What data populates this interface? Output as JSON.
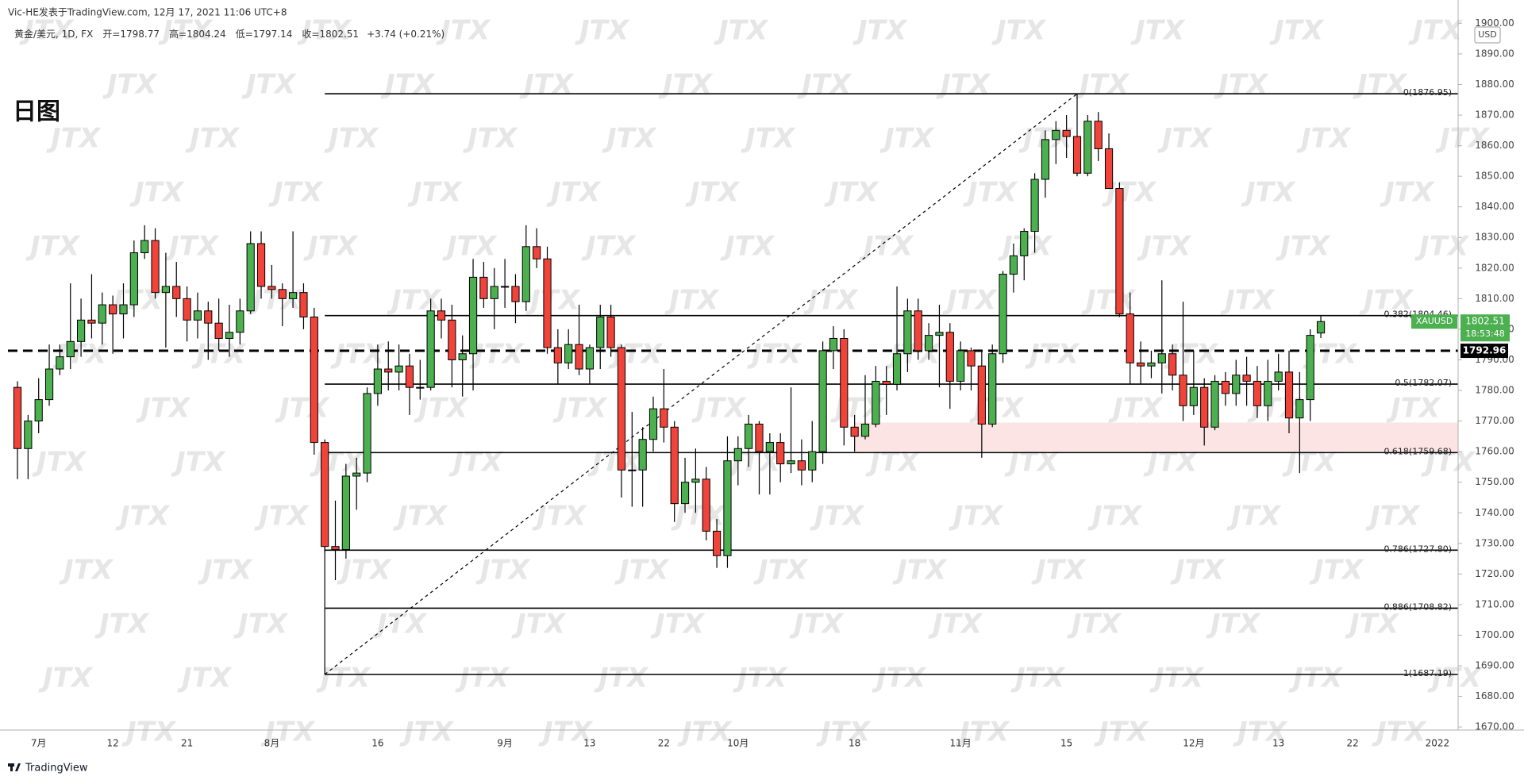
{
  "header": {
    "byline": "Vic-HE发表于TradingView.com, 12月 17, 2021 11:06 UTC+8",
    "symbol": "黄金/美元, 1D, FX",
    "ohlc": [
      {
        "label": "开=",
        "value": 1798.77
      },
      {
        "label": "高=",
        "value": 1804.24
      },
      {
        "label": "低=",
        "value": 1797.14
      },
      {
        "label": "收=",
        "value": 1802.51
      }
    ],
    "change": "+3.74 (+0.21%)"
  },
  "footer": {
    "brand": "TradingView"
  },
  "chart_data": {
    "type": "candlestick",
    "title": "日图",
    "watermark": "JTX",
    "currency": "USD",
    "categories": [
      null,
      null,
      "7月",
      null,
      null,
      null,
      null,
      null,
      null,
      "12",
      null,
      null,
      null,
      null,
      null,
      null,
      "21",
      null,
      null,
      null,
      null,
      null,
      null,
      null,
      "8月",
      null,
      null,
      null,
      null,
      null,
      null,
      null,
      null,
      null,
      "16",
      null,
      null,
      null,
      null,
      null,
      null,
      null,
      null,
      null,
      null,
      null,
      "9月",
      null,
      null,
      null,
      null,
      null,
      null,
      null,
      "13",
      null,
      null,
      null,
      null,
      null,
      null,
      "22",
      null,
      null,
      null,
      null,
      null,
      null,
      "10月",
      null,
      null,
      null,
      null,
      null,
      null,
      null,
      null,
      null,
      null,
      "18",
      null,
      null,
      null,
      null,
      null,
      null,
      null,
      null,
      null,
      "11月",
      null,
      null,
      null,
      null,
      null,
      null,
      null,
      null,
      null,
      "15",
      null,
      null,
      null,
      null,
      null,
      null,
      null,
      null,
      null,
      null,
      null,
      "12月",
      null,
      null,
      null,
      null,
      null,
      null,
      null,
      "13",
      null,
      null,
      null,
      null,
      null,
      null,
      "22",
      null,
      null,
      null,
      null,
      null,
      null,
      null,
      "2022",
      null
    ],
    "open": [
      1781,
      1761,
      1770,
      1777,
      1787,
      1791,
      1796,
      1803,
      1802,
      1808,
      1805,
      1808,
      1825,
      1829,
      1812,
      1814,
      1810,
      1803,
      1806,
      1802,
      1797,
      1799,
      1806,
      1828,
      1814,
      1813,
      1810,
      1812,
      1804,
      1763,
      1729,
      1728,
      1752,
      1753,
      1779,
      1787,
      1786,
      1788,
      1781,
      1781,
      1806,
      1803,
      1790,
      1792,
      1817,
      1810,
      1814,
      1814,
      1809,
      1827,
      1823,
      1794,
      1789,
      1795,
      1787,
      1794,
      1804,
      1794,
      1754,
      1754,
      1764,
      1774,
      1768,
      1743,
      1750,
      1751,
      1734,
      1726,
      1757,
      1761,
      1769,
      1760,
      1763,
      1756,
      1757,
      1754,
      1760,
      1793,
      1797,
      1768,
      1765,
      1769,
      1783,
      1782,
      1792,
      1806,
      1793,
      1798,
      1799,
      1783,
      1793,
      1788,
      1769,
      1792,
      1818,
      1824,
      1832,
      1849,
      1862,
      1865,
      1863,
      1851,
      1868,
      1859,
      1846,
      1805,
      1789,
      1788,
      1789,
      1792,
      1785,
      1775,
      1781,
      1768,
      1783,
      1779,
      1785,
      1783,
      1775,
      1783,
      1786,
      1771,
      1777,
      1798.77,
      null,
      null,
      null,
      null,
      null,
      null,
      null,
      null,
      null,
      null,
      null,
      null
    ],
    "high": [
      1783,
      1772,
      1784,
      1795,
      1795,
      1815,
      1810,
      1818,
      1812,
      1811,
      1815,
      1829,
      1834,
      1833,
      1825,
      1822,
      1814,
      1812,
      1809,
      1810,
      1808,
      1810,
      1832,
      1832,
      1821,
      1815,
      1832,
      1815,
      1807,
      1764,
      1744,
      1756,
      1758,
      1781,
      1795,
      1796,
      1795,
      1792,
      1790,
      1810,
      1810,
      1808,
      1798,
      1823,
      1822,
      1820,
      1823,
      1818,
      1834,
      1833,
      1827,
      1800,
      1800,
      1808,
      1795,
      1808,
      1808,
      1795,
      1773,
      1768,
      1778,
      1787,
      1770,
      1758,
      1761,
      1755,
      1738,
      1765,
      1765,
      1772,
      1770,
      1766,
      1766,
      1781,
      1764,
      1770,
      1796,
      1801,
      1800,
      1772,
      1785,
      1788,
      1788,
      1814,
      1810,
      1810,
      1802,
      1808,
      1802,
      1796,
      1794,
      1793,
      1795,
      1819,
      1828,
      1833,
      1851,
      1865,
      1868,
      1870,
      1877,
      1870,
      1871,
      1864,
      1848,
      1812,
      1796,
      1793,
      1816,
      1795,
      1809,
      1793,
      1784,
      1785,
      1786,
      1790,
      1791,
      1788,
      1790,
      1792,
      1793,
      1786,
      1800,
      1804.24,
      null,
      null,
      null,
      null,
      null,
      null,
      null,
      null,
      null,
      null,
      null,
      null
    ],
    "low": [
      1751,
      1751,
      1766,
      1775,
      1785,
      1787,
      1791,
      1797,
      1795,
      1792,
      1797,
      1804,
      1823,
      1810,
      1794,
      1804,
      1796,
      1797,
      1790,
      1793,
      1791,
      1795,
      1805,
      1810,
      1810,
      1801,
      1807,
      1800,
      1759,
      1727,
      1718,
      1725,
      1741,
      1750,
      1775,
      1780,
      1780,
      1772,
      1777,
      1780,
      1797,
      1781,
      1778,
      1780,
      1807,
      1800,
      1807,
      1802,
      1806,
      1820,
      1792,
      1782,
      1787,
      1785,
      1782,
      1787,
      1791,
      1745,
      1742,
      1742,
      1760,
      1763,
      1737,
      1740,
      1740,
      1731,
      1722,
      1722,
      1749,
      1755,
      1746,
      1746,
      1750,
      1753,
      1749,
      1750,
      1756,
      1787,
      1762,
      1760,
      1764,
      1768,
      1772,
      1780,
      1786,
      1790,
      1790,
      1781,
      1774,
      1780,
      1780,
      1758,
      1768,
      1789,
      1812,
      1816,
      1825,
      1843,
      1854,
      1856,
      1850,
      1850,
      1855,
      1846,
      1804,
      1782,
      1782,
      1784,
      1779,
      1780,
      1770,
      1772,
      1762,
      1767,
      1775,
      1775,
      1775,
      1771,
      1770,
      1780,
      1766,
      1753,
      1770,
      1797.14,
      null,
      null,
      null,
      null,
      null,
      null,
      null,
      null,
      null,
      null,
      null,
      null
    ],
    "close": [
      1761,
      1770,
      1777,
      1787,
      1791,
      1796,
      1803,
      1802,
      1808,
      1805,
      1808,
      1825,
      1829,
      1812,
      1814,
      1810,
      1803,
      1806,
      1802,
      1797,
      1799,
      1806,
      1828,
      1814,
      1813,
      1810,
      1812,
      1804,
      1763,
      1729,
      1728,
      1752,
      1753,
      1779,
      1787,
      1786,
      1788,
      1781,
      1781,
      1806,
      1803,
      1790,
      1792,
      1817,
      1810,
      1814,
      1814,
      1809,
      1827,
      1823,
      1794,
      1789,
      1795,
      1787,
      1794,
      1804,
      1794,
      1754,
      1754,
      1764,
      1774,
      1768,
      1743,
      1750,
      1751,
      1734,
      1726,
      1757,
      1761,
      1769,
      1760,
      1763,
      1756,
      1757,
      1754,
      1760,
      1793,
      1797,
      1768,
      1765,
      1769,
      1783,
      1782,
      1792,
      1806,
      1793,
      1798,
      1799,
      1783,
      1793,
      1788,
      1769,
      1792,
      1818,
      1824,
      1832,
      1849,
      1862,
      1865,
      1863,
      1851,
      1868,
      1859,
      1846,
      1805,
      1789,
      1788,
      1789,
      1792,
      1785,
      1775,
      1781,
      1768,
      1783,
      1779,
      1785,
      1783,
      1775,
      1783,
      1786,
      1771,
      1777,
      1798,
      1802.51,
      null,
      null,
      null,
      null,
      null,
      null,
      null,
      null,
      null,
      null,
      null,
      null
    ],
    "up_color": "#4caf50",
    "down_color": "#f0433a",
    "wick_color": "#000000",
    "ylim": [
      1669,
      1901
    ],
    "yticks": [
      {
        "value": 1670,
        "label": "1670.00"
      },
      {
        "value": 1680,
        "label": "1680.00"
      },
      {
        "value": 1690,
        "label": "1690.00"
      },
      {
        "value": 1700,
        "label": "1700.00"
      },
      {
        "value": 1710,
        "label": "1710.00"
      },
      {
        "value": 1720,
        "label": "1720.00"
      },
      {
        "value": 1730,
        "label": "1730.00"
      },
      {
        "value": 1740,
        "label": "1740.00"
      },
      {
        "value": 1750,
        "label": "1750.00"
      },
      {
        "value": 1760,
        "label": "1760.00"
      },
      {
        "value": 1770,
        "label": "1770.00"
      },
      {
        "value": 1780,
        "label": "1780.00"
      },
      {
        "value": 1790,
        "label": "1790.00"
      },
      {
        "value": 1800,
        "label": "1800.00"
      },
      {
        "value": 1810,
        "label": "1810.00"
      },
      {
        "value": 1820,
        "label": "1820.00"
      },
      {
        "value": 1830,
        "label": "1830.00"
      },
      {
        "value": 1840,
        "label": "1840.00"
      },
      {
        "value": 1850,
        "label": "1850.00"
      },
      {
        "value": 1860,
        "label": "1860.00"
      },
      {
        "value": 1870,
        "label": "1870.00"
      },
      {
        "value": 1880,
        "label": "1880.00"
      },
      {
        "value": 1890,
        "label": "1890.00"
      },
      {
        "value": 1900,
        "label": "1900.00"
      }
    ],
    "fib_levels": [
      {
        "price": 1876.95,
        "label": "0(1876.95)"
      },
      {
        "price": 1804.46,
        "label": "0.382(1804.46)"
      },
      {
        "price": 1782.07,
        "label": "0.5(1782.07)"
      },
      {
        "price": 1759.68,
        "label": "0.618(1759.68)"
      },
      {
        "price": 1727.8,
        "label": "0.786(1727.80)"
      },
      {
        "price": 1708.82,
        "label": "0.886(1708.82)"
      },
      {
        "price": 1687.19,
        "label": "1(1687.19)"
      }
    ],
    "zone": [
      1760,
      1769.5
    ],
    "zone_color": "#fde4e4",
    "dashed_level": 1792.96,
    "last_price": 1802.51,
    "countdown": "18:53:48",
    "symbol_tag": "XAUUSD"
  }
}
